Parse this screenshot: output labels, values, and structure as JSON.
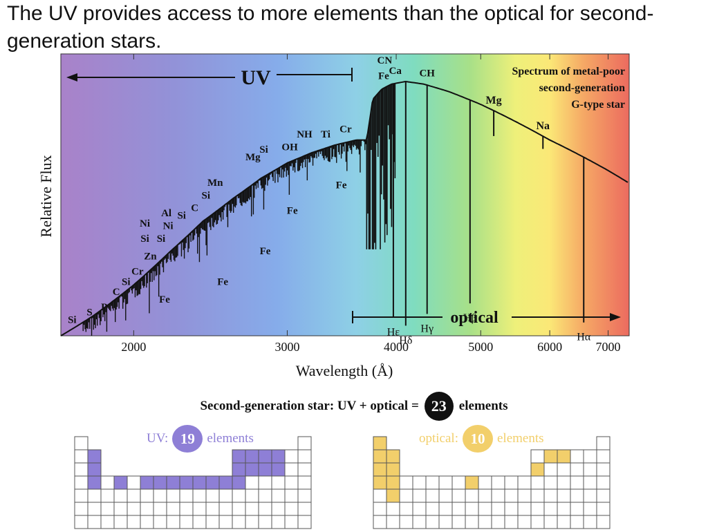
{
  "slide": {
    "title": "The UV provides access to more elements than the optical for second-generation stars."
  },
  "colors": {
    "uv": "#8e7fd6",
    "optical": "#f2cf6b",
    "black": "#111111"
  },
  "chart_data": {
    "type": "line",
    "xlabel": "Wavelength (Å)",
    "ylabel": "Relative Flux",
    "x_ticks": [
      "2000",
      "3000",
      "4000",
      "5000",
      "6000",
      "7000"
    ],
    "xscale": "log",
    "xlim": [
      1650,
      7400
    ],
    "ylim": [
      0,
      1
    ],
    "grid": false,
    "legend": "top-right",
    "legend_text": [
      "Spectrum of metal-poor",
      "second-generation",
      "G-type star"
    ],
    "band_labels": {
      "uv": "UV",
      "optical": "optical"
    },
    "continuum": [
      [
        1650,
        0.0
      ],
      [
        1800,
        0.08
      ],
      [
        2000,
        0.2
      ],
      [
        2200,
        0.33
      ],
      [
        2400,
        0.45
      ],
      [
        2600,
        0.54
      ],
      [
        2800,
        0.62
      ],
      [
        3000,
        0.68
      ],
      [
        3200,
        0.72
      ],
      [
        3400,
        0.75
      ],
      [
        3600,
        0.77
      ],
      [
        3700,
        0.77
      ],
      [
        3760,
        0.93
      ],
      [
        3850,
        0.97
      ],
      [
        3950,
        0.99
      ],
      [
        4100,
        1.0
      ],
      [
        4300,
        0.99
      ],
      [
        4600,
        0.96
      ],
      [
        5000,
        0.91
      ],
      [
        5500,
        0.84
      ],
      [
        6000,
        0.77
      ],
      [
        6500,
        0.71
      ],
      [
        7000,
        0.65
      ],
      [
        7400,
        0.6
      ]
    ],
    "absorption_lines": [
      {
        "label": "Hε",
        "x": 3970,
        "depth": 0.92
      },
      {
        "label": "Hδ",
        "x": 4102,
        "depth": 0.96
      },
      {
        "label": "Hγ",
        "x": 4340,
        "depth": 0.9
      },
      {
        "label": "Hβ",
        "x": 4861,
        "depth": 0.8
      },
      {
        "label": "Hα",
        "x": 6563,
        "depth": 0.65
      },
      {
        "label": "Mg",
        "x": 5175,
        "depth": 0.1
      },
      {
        "label": "Na",
        "x": 5893,
        "depth": 0.05
      }
    ],
    "annotations": [
      {
        "label": "Si",
        "x": 1700,
        "y": 0.05
      },
      {
        "label": "S",
        "x": 1780,
        "y": 0.08
      },
      {
        "label": "P",
        "x": 1850,
        "y": 0.1
      },
      {
        "label": "C",
        "x": 1910,
        "y": 0.16
      },
      {
        "label": "Si",
        "x": 1960,
        "y": 0.2
      },
      {
        "label": "Cr",
        "x": 2020,
        "y": 0.24
      },
      {
        "label": "Zn",
        "x": 2090,
        "y": 0.3
      },
      {
        "label": "Si",
        "x": 2060,
        "y": 0.37
      },
      {
        "label": "Ni",
        "x": 2060,
        "y": 0.43
      },
      {
        "label": "Si",
        "x": 2150,
        "y": 0.37
      },
      {
        "label": "Ni",
        "x": 2190,
        "y": 0.42
      },
      {
        "label": "Al",
        "x": 2180,
        "y": 0.47
      },
      {
        "label": "Si",
        "x": 2270,
        "y": 0.46
      },
      {
        "label": "C",
        "x": 2350,
        "y": 0.49
      },
      {
        "label": "Si",
        "x": 2420,
        "y": 0.54
      },
      {
        "label": "Mn",
        "x": 2480,
        "y": 0.59
      },
      {
        "label": "Mg",
        "x": 2740,
        "y": 0.69
      },
      {
        "label": "Si",
        "x": 2820,
        "y": 0.72
      },
      {
        "label": "OH",
        "x": 3020,
        "y": 0.73
      },
      {
        "label": "NH",
        "x": 3140,
        "y": 0.78
      },
      {
        "label": "Ti",
        "x": 3320,
        "y": 0.78
      },
      {
        "label": "Cr",
        "x": 3500,
        "y": 0.8
      },
      {
        "label": "CN",
        "x": 3880,
        "y": 1.07
      },
      {
        "label": "Fe",
        "x": 3870,
        "y": 1.01
      },
      {
        "label": "Ca",
        "x": 3990,
        "y": 1.03
      },
      {
        "label": "CH",
        "x": 4340,
        "y": 1.02
      },
      {
        "label": "Fe",
        "x": 2170,
        "y": 0.13
      },
      {
        "label": "Fe",
        "x": 2530,
        "y": 0.2
      },
      {
        "label": "Fe",
        "x": 2830,
        "y": 0.32
      },
      {
        "label": "Fe",
        "x": 3040,
        "y": 0.48
      },
      {
        "label": "Fe",
        "x": 3460,
        "y": 0.58
      }
    ]
  },
  "summary": {
    "prefix": "Second-generation star: UV + optical =",
    "count": "23",
    "suffix": "elements"
  },
  "uv_table": {
    "label": "UV:",
    "count": "19",
    "suffix": "elements"
  },
  "optical_table": {
    "label": "optical:",
    "count": "10",
    "suffix": "elements"
  }
}
